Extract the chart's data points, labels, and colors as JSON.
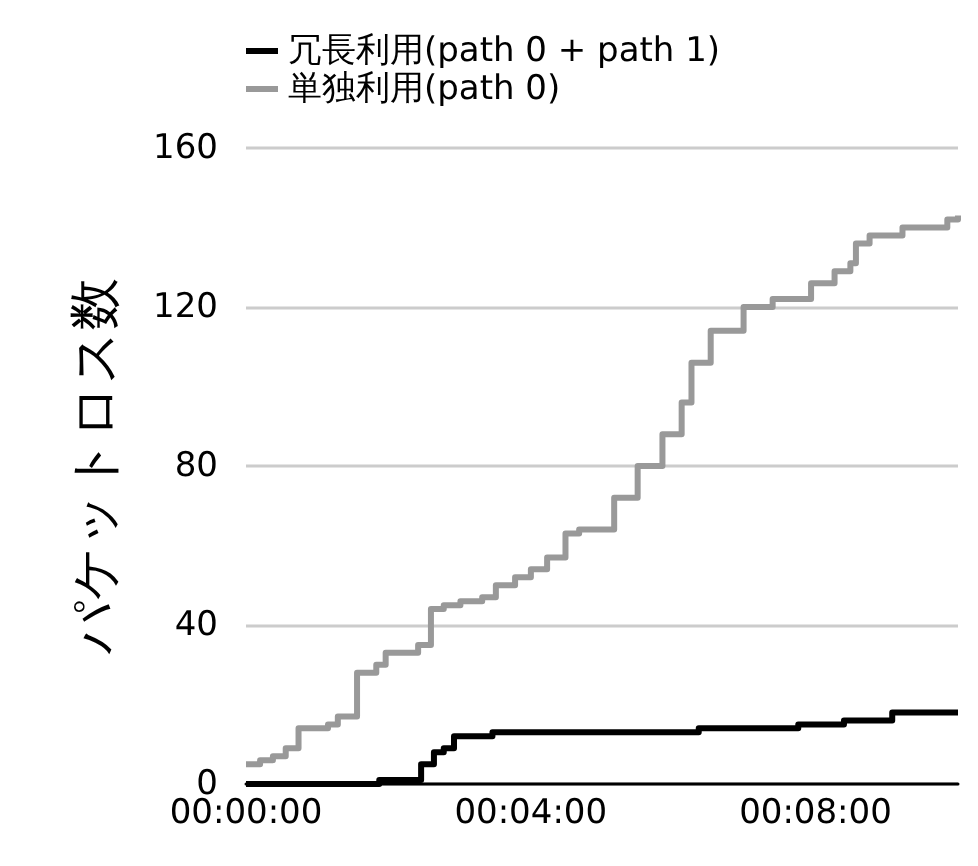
{
  "chart_data": {
    "type": "step",
    "ylabel": "パケットロス数",
    "xlim": [
      0,
      0.1667
    ],
    "ylim": [
      0,
      160
    ],
    "xticks": [
      {
        "value": 0,
        "label": "00:00:00"
      },
      {
        "value": 0.066667,
        "label": "00:04:00"
      },
      {
        "value": 0.133333,
        "label": "00:08:00"
      }
    ],
    "yticks": [
      0,
      40,
      80,
      120,
      160
    ],
    "grid": "y",
    "legend": "top",
    "marker": "none",
    "line_style": "solid",
    "series": [
      {
        "name": "冗長利用(path 0 + path 1)",
        "color": "#000000",
        "x": [
          0,
          0.0312,
          0.041,
          0.044,
          0.0463,
          0.0487,
          0.0577,
          0.106,
          0.1293,
          0.14,
          0.1513,
          0.1667
        ],
        "values": [
          0,
          1,
          5,
          8,
          9,
          12,
          13,
          14,
          15,
          16,
          18,
          18
        ]
      },
      {
        "name": "単独利用(path 0)",
        "color": "#999999",
        "x": [
          0,
          0.0033,
          0.0063,
          0.0093,
          0.0123,
          0.0192,
          0.0215,
          0.026,
          0.0305,
          0.0327,
          0.0403,
          0.0433,
          0.0463,
          0.0502,
          0.0553,
          0.0585,
          0.063,
          0.0667,
          0.0705,
          0.0748,
          0.078,
          0.0862,
          0.0917,
          0.0975,
          0.102,
          0.1043,
          0.1088,
          0.1165,
          0.1233,
          0.1323,
          0.1378,
          0.1415,
          0.1428,
          0.146,
          0.1537,
          0.1642,
          0.1667
        ],
        "values": [
          5,
          6,
          7,
          9,
          14,
          15,
          17,
          28,
          30,
          33,
          35,
          44,
          45,
          46,
          47,
          50,
          52,
          54,
          57,
          63,
          64,
          72,
          80,
          88,
          96,
          106,
          114,
          120,
          122,
          126,
          129,
          131,
          136,
          138,
          140,
          142,
          143
        ]
      }
    ]
  }
}
